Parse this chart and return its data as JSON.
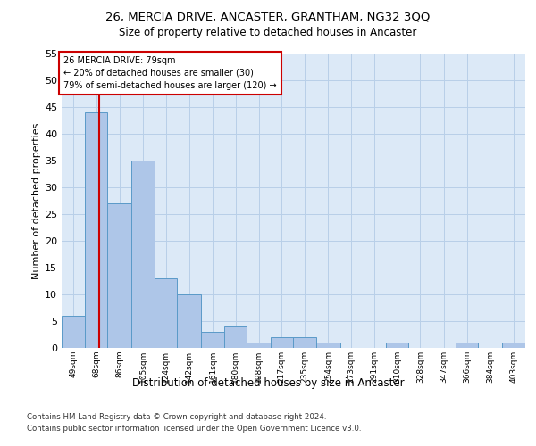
{
  "title1": "26, MERCIA DRIVE, ANCASTER, GRANTHAM, NG32 3QQ",
  "title2": "Size of property relative to detached houses in Ancaster",
  "xlabel": "Distribution of detached houses by size in Ancaster",
  "ylabel": "Number of detached properties",
  "footnote1": "Contains HM Land Registry data © Crown copyright and database right 2024.",
  "footnote2": "Contains public sector information licensed under the Open Government Licence v3.0.",
  "annotation_line1": "26 MERCIA DRIVE: 79sqm",
  "annotation_line2": "← 20% of detached houses are smaller (30)",
  "annotation_line3": "79% of semi-detached houses are larger (120) →",
  "bar_edges": [
    49,
    68,
    86,
    105,
    124,
    142,
    161,
    180,
    198,
    217,
    235,
    254,
    273,
    291,
    310,
    328,
    347,
    366,
    384,
    403,
    422
  ],
  "bar_heights": [
    6,
    44,
    27,
    35,
    13,
    10,
    3,
    4,
    1,
    2,
    2,
    1,
    0,
    0,
    1,
    0,
    0,
    1,
    0,
    1
  ],
  "bar_color": "#aec6e8",
  "bar_edge_color": "#5a9ac8",
  "vertical_line_x": 79,
  "vertical_line_color": "#cc0000",
  "ylim": [
    0,
    55
  ],
  "yticks": [
    0,
    5,
    10,
    15,
    20,
    25,
    30,
    35,
    40,
    45,
    50,
    55
  ],
  "bg_color": "#dce9f7",
  "grid_color": "#b8cfe8",
  "annotation_box_color": "#cc0000"
}
